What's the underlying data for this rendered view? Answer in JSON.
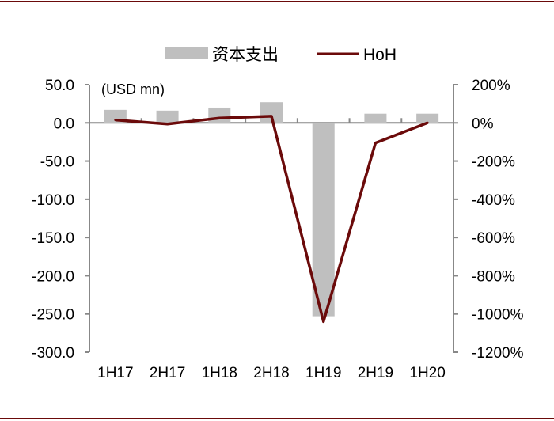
{
  "chart_data": {
    "type": "bar+line",
    "categories": [
      "1H17",
      "2H17",
      "1H18",
      "2H18",
      "1H19",
      "2H19",
      "1H20"
    ],
    "series": [
      {
        "name": "资本支出",
        "type": "bar",
        "axis": "left",
        "color": "#bfbfbf",
        "values": [
          17.0,
          16.0,
          20.0,
          27.0,
          -253.0,
          12.0,
          12.0
        ]
      },
      {
        "name": "HoH",
        "type": "line",
        "axis": "right",
        "color": "#6b0a0a",
        "values": [
          15,
          -6,
          25,
          35,
          -1040,
          -105,
          0
        ]
      }
    ],
    "unit_label": "(USD mn)",
    "y_left": {
      "min": -300,
      "max": 50,
      "step": 50,
      "ticks": [
        "50.0",
        "0.0",
        "-50.0",
        "-100.0",
        "-150.0",
        "-200.0",
        "-250.0",
        "-300.0"
      ]
    },
    "y_right": {
      "min": -1200,
      "max": 200,
      "step": 200,
      "ticks": [
        "200%",
        "0%",
        "-200%",
        "-400%",
        "-600%",
        "-800%",
        "-1000%",
        "-1200%"
      ]
    },
    "legend_position": "top-center",
    "grid": false,
    "frame_color": "#6b0a0a"
  }
}
